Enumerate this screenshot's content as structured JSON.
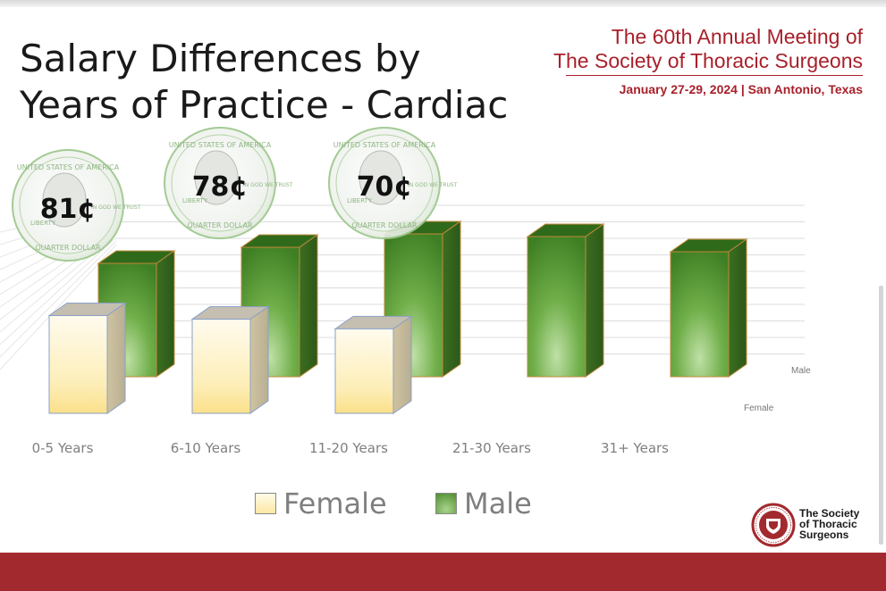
{
  "header": {
    "title_line1": "Salary Differences by",
    "title_line2": "Years of Practice - Cardiac",
    "meeting_line1": "The 60th Annual Meeting of",
    "meeting_line2": "The Society of Thoracic Surgeons",
    "meeting_date": "January 27-29, 2024 | San Antonio, Texas"
  },
  "coins": [
    {
      "label": "81¢",
      "category": "0-5 Years"
    },
    {
      "label": "78¢",
      "category": "6-10 Years"
    },
    {
      "label": "70¢",
      "category": "11-20 Years"
    }
  ],
  "coin_text": {
    "top": "UNITED STATES OF AMERICA",
    "bottom": "QUARTER DOLLAR",
    "left": "LIBERTY",
    "right": "IN GOD WE TRUST"
  },
  "chart_data": {
    "type": "bar",
    "categories": [
      "0-5 Years",
      "6-10 Years",
      "11-20 Years",
      "21-30 Years",
      "31+ Years"
    ],
    "series": [
      {
        "name": "Female",
        "values": [
          81,
          78,
          70,
          null,
          null
        ],
        "color": "#fde7a3"
      },
      {
        "name": "Male",
        "values": [
          100,
          100,
          100,
          null,
          null
        ],
        "color": "#4e8d2f"
      }
    ],
    "depth_labels": {
      "back": "Male",
      "front": "Female"
    },
    "grid": true,
    "legend_position": "bottom",
    "note": ""
  },
  "legend": [
    {
      "label": "Female",
      "color": "#fde7a3"
    },
    {
      "label": "Male",
      "color": "#4e8d2f"
    }
  ],
  "footer": {
    "logo_line1": "The Society",
    "logo_line2": "of Thoracic",
    "logo_line3": "Surgeons",
    "accent": "#a22a2e"
  }
}
